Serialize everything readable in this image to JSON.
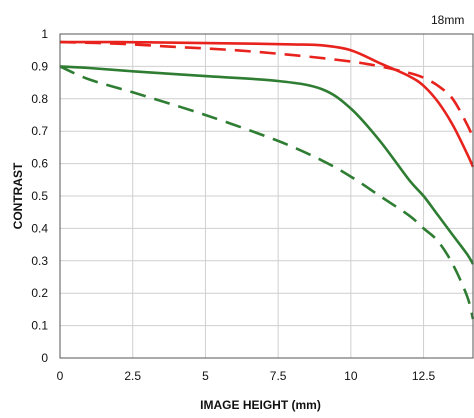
{
  "chart_data": {
    "type": "line",
    "xlabel": "IMAGE HEIGHT (mm)",
    "ylabel": "CONTRAST",
    "annotation": "18mm",
    "xlim": [
      0,
      14.2
    ],
    "ylim": [
      0,
      1
    ],
    "x_ticks": [
      0,
      2.5,
      5,
      7.5,
      10,
      12.5
    ],
    "x_tick_labels": [
      "0",
      "2.5",
      "5",
      "7.5",
      "10",
      "12.5"
    ],
    "y_ticks": [
      0,
      0.1,
      0.2,
      0.3,
      0.4,
      0.5,
      0.6,
      0.7,
      0.8,
      0.9,
      1
    ],
    "y_tick_labels": [
      "0",
      "0.1",
      "0.2",
      "0.3",
      "0.4",
      "0.5",
      "0.6",
      "0.7",
      "0.8",
      "0.9",
      "1"
    ],
    "grid": true,
    "series": [
      {
        "color": "#e8231e",
        "style": "solid",
        "x": [
          0,
          2,
          4,
          6,
          8,
          9,
          10,
          11,
          12,
          12.5,
          13,
          13.5,
          14,
          14.2
        ],
        "y": [
          0.975,
          0.975,
          0.973,
          0.971,
          0.968,
          0.965,
          0.95,
          0.91,
          0.87,
          0.84,
          0.79,
          0.72,
          0.63,
          0.59
        ]
      },
      {
        "color": "#e8231e",
        "style": "dashed",
        "x": [
          0,
          2,
          4,
          6,
          8,
          10,
          11,
          12,
          12.5,
          13,
          13.5,
          14,
          14.2
        ],
        "y": [
          0.975,
          0.97,
          0.96,
          0.95,
          0.935,
          0.915,
          0.9,
          0.88,
          0.865,
          0.84,
          0.8,
          0.72,
          0.68
        ]
      },
      {
        "color": "#2e7d32",
        "style": "solid",
        "x": [
          0,
          1,
          2.5,
          5,
          7.5,
          9,
          10,
          11,
          12,
          12.5,
          13,
          13.5,
          14,
          14.2
        ],
        "y": [
          0.9,
          0.895,
          0.885,
          0.87,
          0.855,
          0.83,
          0.77,
          0.67,
          0.55,
          0.5,
          0.44,
          0.38,
          0.32,
          0.29
        ]
      },
      {
        "color": "#2e7d32",
        "style": "dashed",
        "x": [
          0,
          1,
          2.5,
          5,
          7.5,
          9,
          10,
          11,
          12,
          12.5,
          13,
          13.5,
          14,
          14.2
        ],
        "y": [
          0.9,
          0.86,
          0.82,
          0.75,
          0.67,
          0.61,
          0.56,
          0.5,
          0.44,
          0.4,
          0.36,
          0.29,
          0.19,
          0.12
        ]
      }
    ]
  }
}
